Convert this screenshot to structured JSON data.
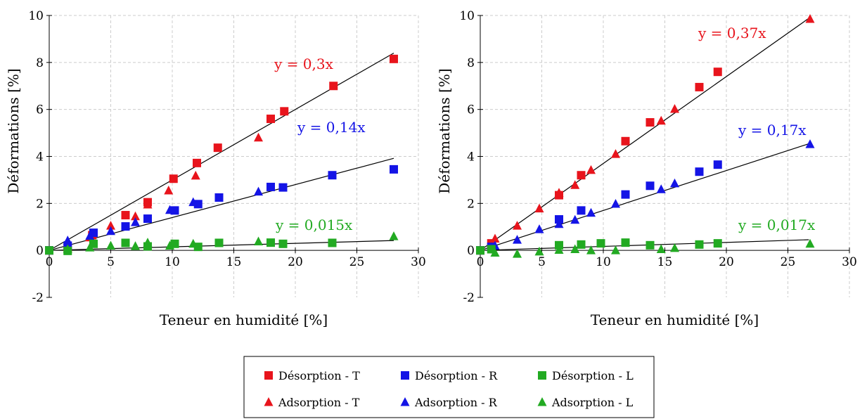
{
  "colors": {
    "T": "#e8141c",
    "R": "#1414e6",
    "L": "#22aa22",
    "line": "#000000",
    "grid": "#cccccc"
  },
  "legend": {
    "items": [
      {
        "label": "Désorption - T",
        "marker": "square",
        "color": "#e8141c"
      },
      {
        "label": "Désorption - R",
        "marker": "square",
        "color": "#1414e6"
      },
      {
        "label": "Désorption - L",
        "marker": "square",
        "color": "#22aa22"
      },
      {
        "label": "Adsorption - T",
        "marker": "triangle",
        "color": "#e8141c"
      },
      {
        "label": "Adsorption - R",
        "marker": "triangle",
        "color": "#1414e6"
      },
      {
        "label": "Adsorption - L",
        "marker": "triangle",
        "color": "#22aa22"
      }
    ]
  },
  "chart_data": [
    {
      "type": "scatter",
      "xlabel": "Teneur en humidité [%]",
      "ylabel": "Déformations [%]",
      "xlim": [
        0,
        30
      ],
      "ylim": [
        -2,
        10
      ],
      "xticks": [
        "0",
        "5",
        "10",
        "15",
        "20",
        "25",
        "30"
      ],
      "yticks": [
        "-2",
        "0",
        "2",
        "4",
        "6",
        "8",
        "10"
      ],
      "grid": true,
      "fits": [
        {
          "label": "y = 0,3x",
          "slope": 0.3,
          "x_end": 28,
          "color": "#e8141c"
        },
        {
          "label": "y = 0,14x",
          "slope": 0.14,
          "x_end": 28,
          "color": "#1414e6"
        },
        {
          "label": "y = 0,015x",
          "slope": 0.015,
          "x_end": 28,
          "color": "#22aa22"
        }
      ],
      "series": [
        {
          "name": "Désorption - T",
          "marker": "square",
          "color": "#e8141c",
          "x": [
            0,
            1.5,
            3.5,
            6.2,
            8,
            10.1,
            12,
            13.7,
            18,
            19.1,
            23.1,
            28
          ],
          "y": [
            0,
            0.1,
            0.65,
            1.5,
            2.05,
            3.05,
            3.72,
            4.37,
            5.6,
            5.92,
            7,
            8.15
          ]
        },
        {
          "name": "Adsorption - T",
          "marker": "triangle",
          "color": "#e8141c",
          "x": [
            1.5,
            3.3,
            5,
            7,
            8,
            9.7,
            11.9,
            17
          ],
          "y": [
            0.15,
            0.55,
            1.05,
            1.45,
            1.95,
            2.55,
            3.18,
            4.8
          ]
        },
        {
          "name": "Désorption - R",
          "marker": "square",
          "color": "#1414e6",
          "x": [
            0,
            1.5,
            3.6,
            6.2,
            8,
            10.2,
            12.1,
            13.8,
            18,
            19,
            23,
            28
          ],
          "y": [
            0,
            0.2,
            0.75,
            1.02,
            1.35,
            1.7,
            1.97,
            2.25,
            2.7,
            2.68,
            3.2,
            3.45
          ]
        },
        {
          "name": "Adsorption - R",
          "marker": "triangle",
          "color": "#1414e6",
          "x": [
            1.5,
            3.3,
            5,
            7,
            9.8,
            11.7,
            17
          ],
          "y": [
            0.42,
            0.62,
            0.82,
            1.2,
            1.72,
            2.05,
            2.5
          ]
        },
        {
          "name": "Désorption - L",
          "marker": "square",
          "color": "#22aa22",
          "x": [
            0,
            1.5,
            3.6,
            6.2,
            8,
            10.2,
            12.1,
            13.8,
            18,
            19,
            23
          ],
          "y": [
            0,
            -0.02,
            0.28,
            0.32,
            0.17,
            0.28,
            0.15,
            0.32,
            0.33,
            0.28,
            0.32
          ]
        },
        {
          "name": "Adsorption - L",
          "marker": "triangle",
          "color": "#22aa22",
          "x": [
            1.5,
            3.3,
            5,
            7,
            8,
            9.8,
            11.7,
            17,
            28
          ],
          "y": [
            0.05,
            0.12,
            0.2,
            0.18,
            0.33,
            0.2,
            0.28,
            0.38,
            0.6
          ]
        }
      ]
    },
    {
      "type": "scatter",
      "xlabel": "Teneur en humidité [%]",
      "ylabel": "Déformations [%]",
      "xlim": [
        0,
        30
      ],
      "ylim": [
        -2,
        10
      ],
      "xticks": [
        "0",
        "5",
        "10",
        "15",
        "20",
        "25",
        "30"
      ],
      "yticks": [
        "-2",
        "0",
        "2",
        "4",
        "6",
        "8",
        "10"
      ],
      "grid": true,
      "fits": [
        {
          "label": "y = 0,37x",
          "slope": 0.37,
          "x_end": 26.7,
          "color": "#e8141c"
        },
        {
          "label": "y = 0,17x",
          "slope": 0.17,
          "x_end": 26.7,
          "color": "#1414e6"
        },
        {
          "label": "y = 0,017x",
          "slope": 0.017,
          "x_end": 26.7,
          "color": "#22aa22"
        }
      ],
      "series": [
        {
          "name": "Désorption - T",
          "marker": "square",
          "color": "#e8141c",
          "x": [
            0,
            0.9,
            6.4,
            8.2,
            11.8,
            13.8,
            17.8,
            19.3
          ],
          "y": [
            0,
            0.3,
            2.35,
            3.2,
            4.65,
            5.45,
            6.95,
            7.6
          ]
        },
        {
          "name": "Adsorption - T",
          "marker": "triangle",
          "color": "#e8141c",
          "x": [
            1.2,
            3,
            4.8,
            6.4,
            7.7,
            9,
            11,
            14.7,
            15.8,
            26.8
          ],
          "y": [
            0.5,
            1.05,
            1.78,
            2.45,
            2.78,
            3.42,
            4.1,
            5.52,
            6.02,
            9.85
          ]
        },
        {
          "name": "Désorption - R",
          "marker": "square",
          "color": "#1414e6",
          "x": [
            0,
            0.9,
            6.4,
            8.2,
            11.8,
            13.8,
            17.8,
            19.3
          ],
          "y": [
            0,
            0.15,
            1.32,
            1.7,
            2.38,
            2.75,
            3.35,
            3.65
          ]
        },
        {
          "name": "Adsorption - R",
          "marker": "triangle",
          "color": "#1414e6",
          "x": [
            1.2,
            3,
            4.8,
            6.4,
            7.7,
            9,
            11,
            14.7,
            15.8,
            26.8
          ],
          "y": [
            0.2,
            0.45,
            0.9,
            1.12,
            1.3,
            1.6,
            1.98,
            2.6,
            2.85,
            4.52
          ]
        },
        {
          "name": "Désorption - L",
          "marker": "square",
          "color": "#22aa22",
          "x": [
            0,
            0.9,
            6.4,
            8.2,
            9.8,
            11.8,
            13.8,
            17.8,
            19.3
          ],
          "y": [
            0,
            0.05,
            0.22,
            0.25,
            0.3,
            0.33,
            0.22,
            0.25,
            0.3
          ]
        },
        {
          "name": "Adsorption - L",
          "marker": "triangle",
          "color": "#22aa22",
          "x": [
            1.2,
            3,
            4.8,
            6.4,
            7.7,
            9,
            11,
            14.7,
            15.8,
            26.8
          ],
          "y": [
            -0.1,
            -0.15,
            -0.05,
            0.02,
            0.05,
            0.0,
            0.0,
            0.05,
            0.1,
            0.28
          ]
        }
      ]
    }
  ]
}
